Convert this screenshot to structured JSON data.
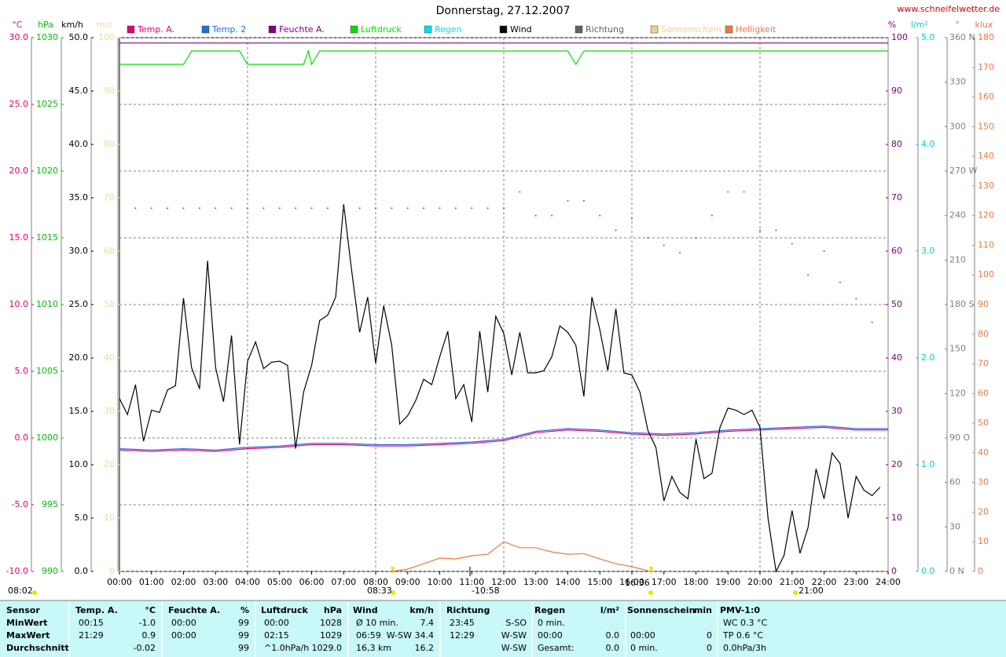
{
  "chart_data": {
    "type": "line",
    "title": "Donnerstag, 27.12.2007",
    "source": "www.schneifelwetter.de",
    "xlim": [
      0,
      24
    ],
    "xticks": [
      {
        "value": 0,
        "label": "00:00"
      },
      {
        "value": 1,
        "label": "01:00"
      },
      {
        "value": 2,
        "label": "02:00"
      },
      {
        "value": 3,
        "label": "03:00"
      },
      {
        "value": 4,
        "label": "04:00"
      },
      {
        "value": 5,
        "label": "05:00"
      },
      {
        "value": 6,
        "label": "06:00"
      },
      {
        "value": 7,
        "label": "07:00"
      },
      {
        "value": 8,
        "label": "08:00"
      },
      {
        "value": 9,
        "label": "09:00"
      },
      {
        "value": 10,
        "label": "10:00"
      },
      {
        "value": 11,
        "label": "11:00"
      },
      {
        "value": 12,
        "label": "12:00"
      },
      {
        "value": 13,
        "label": "13:00"
      },
      {
        "value": 14,
        "label": "14:00"
      },
      {
        "value": 15,
        "label": "15:00"
      },
      {
        "value": 16,
        "label": "16:00"
      },
      {
        "value": 17,
        "label": "17:00"
      },
      {
        "value": 18,
        "label": "18:00"
      },
      {
        "value": 19,
        "label": "19:00"
      },
      {
        "value": 20,
        "label": "20:00"
      },
      {
        "value": 21,
        "label": "21:00"
      },
      {
        "value": 22,
        "label": "22:00"
      },
      {
        "value": 23,
        "label": "23:00"
      },
      {
        "value": 24,
        "label": "24:00"
      }
    ],
    "grid": true,
    "grid_axis": "°C",
    "legend": "top",
    "axes": [
      {
        "unit": "°C",
        "color": "#e0007a",
        "lim": [
          -10,
          30
        ],
        "ticks": [
          {
            "value": -10,
            "label": "-10.0"
          },
          {
            "value": -5,
            "label": "-5.0"
          },
          {
            "value": 0,
            "label": "0.0"
          },
          {
            "value": 5,
            "label": "5.0"
          },
          {
            "value": 10,
            "label": "10.0"
          },
          {
            "value": 15,
            "label": "15.0"
          },
          {
            "value": 20,
            "label": "20.0"
          },
          {
            "value": 25,
            "label": "25.0"
          },
          {
            "value": 30,
            "label": "30.0"
          }
        ]
      },
      {
        "unit": "hPa",
        "color": "#00c000",
        "lim": [
          990,
          1030
        ],
        "ticks": [
          990,
          995,
          1000,
          1005,
          1010,
          1015,
          1020,
          1025,
          1030
        ]
      },
      {
        "unit": "km/h",
        "color": "#000000",
        "lim": [
          0,
          50
        ],
        "ticks": [
          {
            "value": 0,
            "label": "0.0"
          },
          {
            "value": 5,
            "label": "5.0"
          },
          {
            "value": 10,
            "label": "10.0"
          },
          {
            "value": 15,
            "label": "15.0"
          },
          {
            "value": 20,
            "label": "20.0"
          },
          {
            "value": 25,
            "label": "25.0"
          },
          {
            "value": 30,
            "label": "30.0"
          },
          {
            "value": 35,
            "label": "35.0"
          },
          {
            "value": 40,
            "label": "40.0"
          },
          {
            "value": 45,
            "label": "45.0"
          },
          {
            "value": 50,
            "label": "50.0"
          }
        ]
      },
      {
        "unit": "min",
        "color": "#f0d8a0",
        "lim": [
          0,
          100
        ],
        "ticks": [
          0,
          10,
          20,
          30,
          40,
          50,
          60,
          70,
          80,
          90,
          100
        ]
      },
      {
        "unit": "%",
        "color": "#800080",
        "lim": [
          0,
          100
        ],
        "ticks": [
          0,
          10,
          20,
          30,
          40,
          50,
          60,
          70,
          80,
          90,
          100
        ]
      },
      {
        "unit": "l/m²",
        "color": "#00d0d0",
        "lim": [
          0,
          5
        ],
        "ticks": [
          {
            "value": 0,
            "label": "0.0"
          },
          {
            "value": 1,
            "label": "1.0"
          },
          {
            "value": 2,
            "label": "2.0"
          },
          {
            "value": 3,
            "label": "3.0"
          },
          {
            "value": 4,
            "label": "4.0"
          },
          {
            "value": 5,
            "label": "5.0"
          }
        ]
      },
      {
        "unit": "°",
        "color": "#808080",
        "lim": [
          0,
          360
        ],
        "ticks": [
          {
            "value": 0,
            "label": "0 N"
          },
          30,
          60,
          {
            "value": 90,
            "label": "90 O"
          },
          120,
          150,
          {
            "value": 180,
            "label": "180 S"
          },
          210,
          240,
          {
            "value": 270,
            "label": "270 W"
          },
          300,
          330,
          {
            "value": 360,
            "label": "360 N"
          }
        ]
      },
      {
        "unit": "klux",
        "color": "#f07840",
        "lim": [
          0,
          180
        ],
        "ticks": [
          0,
          10,
          20,
          30,
          40,
          50,
          60,
          70,
          80,
          90,
          100,
          110,
          120,
          130,
          140,
          150,
          160,
          170,
          180
        ]
      }
    ],
    "series": [
      {
        "name": "Temp. A.",
        "color": "#e0007a",
        "axis": "°C",
        "x": [
          0,
          1,
          2,
          3,
          4,
          5,
          6,
          7,
          8,
          9,
          10,
          11,
          12,
          13,
          14,
          15,
          16,
          17,
          18,
          19,
          20,
          21,
          22,
          23,
          24
        ],
        "values": [
          -0.9,
          -1.0,
          -0.9,
          -1.0,
          -0.8,
          -0.7,
          -0.5,
          -0.5,
          -0.6,
          -0.6,
          -0.5,
          -0.4,
          -0.2,
          0.4,
          0.6,
          0.5,
          0.3,
          0.2,
          0.3,
          0.5,
          0.6,
          0.7,
          0.8,
          0.6,
          0.6
        ]
      },
      {
        "name": "Temp. 2",
        "color": "#1e6ee0",
        "axis": "°C",
        "x": [
          0,
          1,
          2,
          3,
          4,
          5,
          6,
          7,
          8,
          9,
          10,
          11,
          12,
          13,
          14,
          15,
          16,
          17,
          18,
          19,
          20,
          21,
          22,
          23,
          24
        ],
        "values": [
          -0.8,
          -0.9,
          -0.8,
          -0.9,
          -0.7,
          -0.6,
          -0.4,
          -0.4,
          -0.5,
          -0.5,
          -0.4,
          -0.3,
          -0.1,
          0.5,
          0.7,
          0.6,
          0.4,
          0.3,
          0.4,
          0.6,
          0.7,
          0.8,
          0.9,
          0.7,
          0.7
        ]
      },
      {
        "name": "Feuchte A.",
        "color": "#800080",
        "axis": "%",
        "x": [
          0,
          24
        ],
        "values": [
          99,
          99
        ]
      },
      {
        "name": "Luftdruck",
        "color": "#00e000",
        "axis": "hPa",
        "x": [
          0,
          2,
          2.25,
          3.75,
          4,
          5.75,
          5.9,
          6,
          6.25,
          14,
          14.25,
          14.5,
          24
        ],
        "values": [
          1028,
          1028,
          1029,
          1029,
          1028,
          1028,
          1029,
          1028,
          1029,
          1029,
          1028,
          1029,
          1029
        ]
      },
      {
        "name": "Regen",
        "color": "#00e0e0"
      },
      {
        "name": "Wind",
        "color": "#000000",
        "axis": "km/h",
        "x": [
          0,
          0.25,
          0.5,
          0.75,
          1,
          1.25,
          1.5,
          1.75,
          2,
          2.25,
          2.5,
          2.75,
          3,
          3.25,
          3.5,
          3.75,
          4,
          4.25,
          4.5,
          4.75,
          5,
          5.25,
          5.5,
          5.75,
          6,
          6.25,
          6.5,
          6.75,
          7,
          7.25,
          7.5,
          7.75,
          8,
          8.25,
          8.5,
          8.75,
          9,
          9.25,
          9.5,
          9.75,
          10,
          10.25,
          10.5,
          10.75,
          11,
          11.25,
          11.5,
          11.75,
          12,
          12.25,
          12.5,
          12.75,
          13,
          13.25,
          13.5,
          13.75,
          14,
          14.25,
          14.5,
          14.75,
          15,
          15.25,
          15.5,
          15.75,
          16,
          16.25,
          16.5,
          16.75,
          17,
          17.25,
          17.5,
          17.75,
          18,
          18.25,
          18.5,
          18.75,
          19,
          19.25,
          19.5,
          19.75,
          20,
          20.25,
          20.5,
          20.75,
          21,
          21.25,
          21.5,
          21.75,
          22,
          22.25,
          22.5,
          22.75,
          23,
          23.25,
          23.5,
          23.75
        ],
        "values": [
          16.2,
          14.7,
          17.5,
          12.2,
          15.1,
          14.9,
          17.0,
          17.4,
          25.6,
          19.1,
          17.1,
          29.1,
          19.1,
          15.9,
          22.1,
          11.9,
          19.7,
          21.5,
          19.0,
          19.6,
          19.7,
          19.3,
          11.5,
          16.8,
          19.3,
          23.5,
          24.0,
          25.7,
          34.4,
          28.2,
          22.4,
          25.7,
          19.5,
          24.9,
          21.2,
          13.8,
          14.6,
          16.0,
          18.0,
          17.5,
          20.1,
          22.5,
          16.2,
          17.5,
          14.0,
          22.5,
          16.8,
          23.9,
          22.3,
          18.4,
          22.4,
          18.6,
          18.6,
          18.8,
          20.1,
          23.0,
          22.4,
          21.2,
          16.4,
          25.7,
          22.6,
          18.8,
          24.6,
          18.6,
          18.4,
          16.8,
          13.2,
          11.6,
          6.6,
          8.9,
          7.4,
          6.8,
          12.4,
          8.7,
          9.2,
          13.5,
          15.3,
          15.1,
          14.7,
          15.1,
          13.5,
          5.0,
          0,
          1.5,
          5.7,
          1.7,
          4.1,
          9.6,
          6.8,
          11.1,
          10.1,
          5.0,
          8.9,
          7.6,
          7.1,
          7.9
        ]
      },
      {
        "name": "Richtung",
        "color": "#606060",
        "axis": "°",
        "type": "scatter",
        "x": [
          0,
          0.5,
          1,
          1.5,
          2,
          2.5,
          3,
          3.5,
          4,
          4.5,
          5,
          5.5,
          6,
          6.5,
          7,
          7.5,
          8,
          8.5,
          9,
          9.5,
          10,
          10.5,
          11,
          11.5,
          12,
          12.5,
          13,
          13.5,
          14,
          14.5,
          15,
          15.5,
          16,
          16.5,
          17,
          17.5,
          18,
          18.5,
          19,
          19.5,
          20,
          20.5,
          21,
          21.5,
          22,
          22.5,
          23,
          23.5
        ],
        "values": [
          245,
          245,
          245,
          245,
          245,
          245,
          245,
          245,
          245,
          245,
          245,
          245,
          245,
          245,
          245,
          245,
          245,
          245,
          245,
          245,
          245,
          245,
          245,
          245,
          245,
          256,
          240,
          240,
          250,
          250,
          240,
          230,
          238,
          225,
          220,
          215,
          225,
          240,
          256,
          256,
          230,
          230,
          221,
          200,
          216,
          195,
          184,
          168
        ]
      },
      {
        "name": "Sonnenschein",
        "color": "#f0d090"
      },
      {
        "name": "Helligkeit",
        "color": "#f07840",
        "axis": "klux",
        "x": [
          8.5,
          9,
          9.5,
          10,
          10.5,
          11,
          11.5,
          12,
          12.5,
          13,
          13.5,
          14,
          14.5,
          15,
          15.5,
          16,
          16.5
        ],
        "values": [
          0,
          0.8,
          2.6,
          4.5,
          4.2,
          5.3,
          5.8,
          10,
          8,
          8,
          6.6,
          5.8,
          6,
          4.2,
          2.6,
          1.6,
          0.3
        ]
      }
    ],
    "annotations": [
      "08:02",
      "08:33",
      "-10:58",
      "16:36",
      "21:00"
    ]
  },
  "stats_table": {
    "header": [
      "Sensor",
      "Temp. A.",
      "°C",
      "Feuchte A.",
      "%",
      "Luftdruck",
      "hPa",
      "Wind",
      "km/h",
      "Richtung",
      null,
      "Regen",
      "l/m²",
      "Sonnenschein",
      "min",
      "PMV-1:0"
    ],
    "rows": [
      [
        "MinWert",
        "00:15",
        "-1.0",
        "00:00",
        "99",
        "00:00",
        "1028",
        "Ø 10 min.",
        "7.4",
        "23:45",
        "S-SO",
        "0 min.",
        null,
        null,
        null,
        "WC 0.3 °C"
      ],
      [
        "MaxWert",
        "21:29",
        "0.9",
        "00:00",
        "99",
        "02:15",
        "1029",
        "06:59",
        "W-SW 34.4",
        "12:29",
        "W-SW",
        "00:00",
        "0.0",
        "00:00",
        "0",
        "TP 0.6 °C"
      ],
      [
        "Durchschnitt",
        null,
        "-0.02",
        null,
        "99",
        "^1.0hPa/h",
        "1029.0",
        "16,3 km",
        "16.2",
        null,
        "W-SW",
        "Gesamt:",
        "0.0",
        "0 min.",
        "0",
        "0.0hPa/3h"
      ]
    ]
  }
}
